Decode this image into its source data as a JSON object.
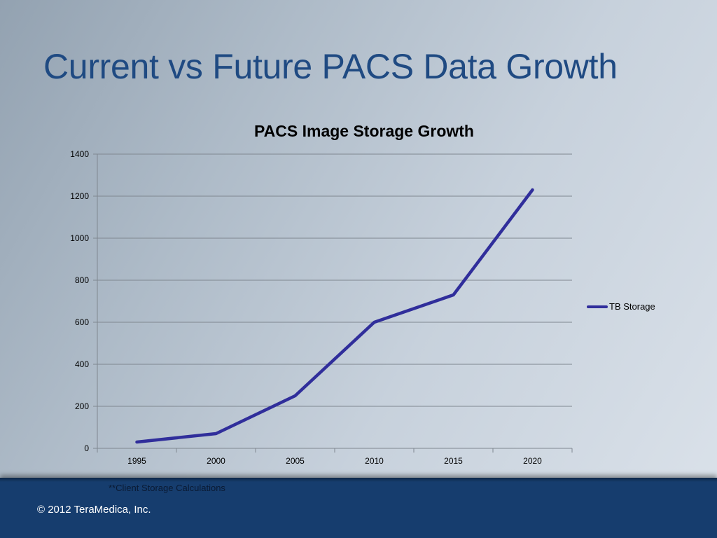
{
  "slide": {
    "title": "Current vs Future PACS Data Growth",
    "footnote": "**Client Storage Calculations",
    "copyright": "© 2012 TeraMedica, Inc."
  },
  "colors": {
    "title": "#1f4a82",
    "series": "#302e9b",
    "footer": "#163d6e",
    "gridline": "#7f8790"
  },
  "chart_data": {
    "type": "line",
    "title": "PACS Image Storage Growth",
    "xlabel": "",
    "ylabel": "",
    "categories": [
      "1995",
      "2000",
      "2005",
      "2010",
      "2015",
      "2020"
    ],
    "yticks": [
      "0",
      "200",
      "400",
      "600",
      "800",
      "1000",
      "1200",
      "1400"
    ],
    "ylim": [
      0,
      1400
    ],
    "grid": true,
    "legend_position": "right",
    "series": [
      {
        "name": "TB Storage",
        "values": [
          30,
          70,
          250,
          600,
          730,
          1230
        ]
      }
    ]
  }
}
